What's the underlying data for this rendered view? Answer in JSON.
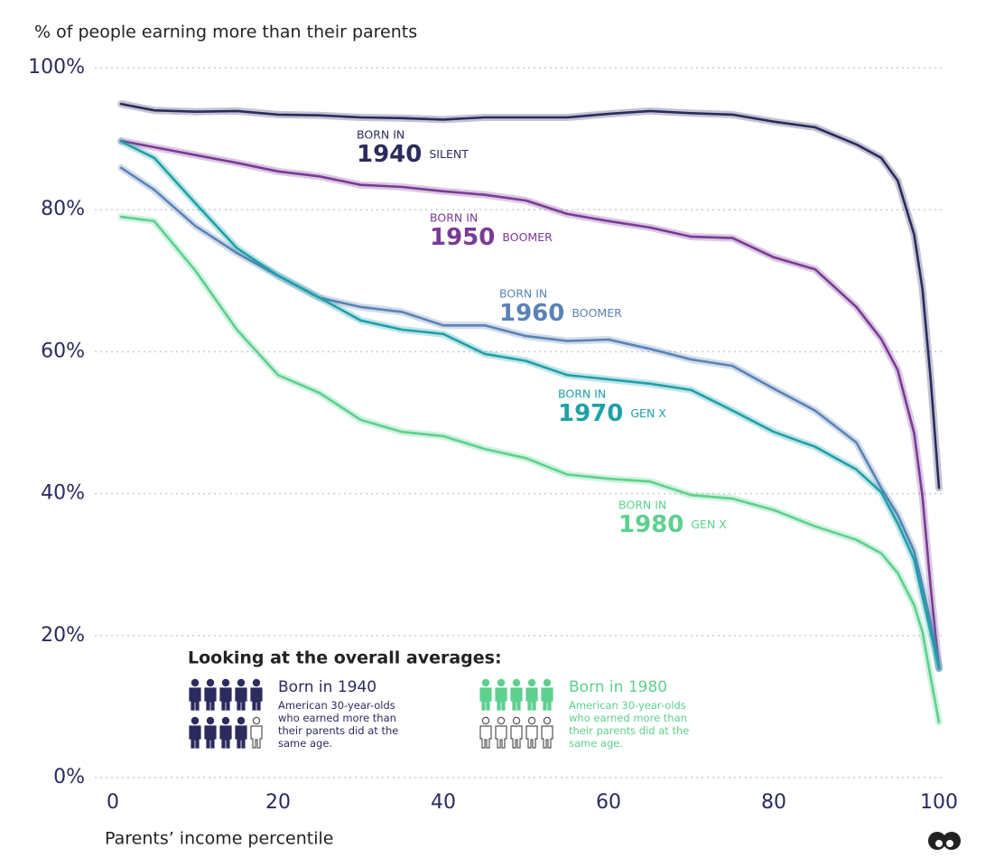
{
  "chart_data": {
    "type": "line",
    "y_axis_title": "% of people earning more than their parents",
    "x_axis_title": "Parents’ income percentile",
    "annotation_prefix": "BORN IN",
    "x": [
      1,
      5,
      10,
      15,
      20,
      25,
      30,
      35,
      40,
      45,
      50,
      55,
      60,
      65,
      70,
      75,
      80,
      85,
      90,
      93,
      95,
      97,
      98,
      99,
      100
    ],
    "xlim": [
      0,
      100
    ],
    "xticks": [
      0,
      20,
      40,
      60,
      80,
      100
    ],
    "ylim": [
      0,
      100
    ],
    "yticks": [
      {
        "value": 0,
        "label": "0%"
      },
      {
        "value": 20,
        "label": "20%"
      },
      {
        "value": 40,
        "label": "40%"
      },
      {
        "value": 60,
        "label": "60%"
      },
      {
        "value": 80,
        "label": "80%"
      },
      {
        "value": 100,
        "label": "100%"
      }
    ],
    "grid": true,
    "series": [
      {
        "name": "1940",
        "generation": "SILENT",
        "color": "#2b2b5e",
        "values": [
          94.9,
          94,
          93.8,
          93.9,
          93.4,
          93.3,
          93,
          92.9,
          92.7,
          93,
          93,
          93,
          93.5,
          93.9,
          93.6,
          93.4,
          92.4,
          91.6,
          89.2,
          87.3,
          84.1,
          76.5,
          68.8,
          56.1,
          40.8
        ]
      },
      {
        "name": "1950",
        "generation": "BOOMER",
        "color": "#7b3a96",
        "values": [
          89.7,
          88.8,
          87.7,
          86.6,
          85.4,
          84.7,
          83.5,
          83.2,
          82.6,
          82.1,
          81.3,
          79.4,
          78.4,
          77.5,
          76.2,
          76,
          73.3,
          71.6,
          66.3,
          61.8,
          57.4,
          48.5,
          39.6,
          26.8,
          15.4
        ]
      },
      {
        "name": "1960",
        "generation": "BOOMER",
        "color": "#5b82b5",
        "values": [
          85.9,
          82.8,
          77.7,
          73.9,
          70.7,
          67.6,
          66.3,
          65.6,
          63.7,
          63.7,
          62.2,
          61.5,
          61.7,
          60.4,
          58.9,
          58,
          54.8,
          51.7,
          47.2,
          40.8,
          37,
          31.9,
          27,
          21.8,
          15.4
        ]
      },
      {
        "name": "1970",
        "generation": "GEN X",
        "color": "#1fa0a8",
        "values": [
          89.6,
          87.3,
          80.9,
          74.6,
          70.7,
          67.6,
          64.4,
          63.1,
          62.5,
          59.7,
          58.7,
          56.7,
          56.1,
          55.5,
          54.6,
          51.7,
          48.7,
          46.6,
          43.4,
          40.2,
          35.8,
          30.7,
          25.5,
          20.5,
          15.4
        ]
      },
      {
        "name": "1980",
        "generation": "GEN X",
        "color": "#5dd08e",
        "values": [
          79,
          78.4,
          71.4,
          63.1,
          56.7,
          54.2,
          50.4,
          48.7,
          48.1,
          46.3,
          45,
          42.7,
          42.1,
          41.7,
          39.8,
          39.3,
          37.7,
          35.4,
          33.5,
          31.6,
          28.8,
          24.3,
          20.5,
          14.1,
          7.8
        ]
      }
    ]
  },
  "inset": {
    "title": "Looking at the overall averages:",
    "groups": [
      {
        "title": "Born in 1940",
        "text": "American 30-year-olds who earned more than their parents did at the same age.",
        "color": "#2b2b5e",
        "icons_filled": 9,
        "icons_total": 10
      },
      {
        "title": "Born in 1980",
        "text": "American 30-year-olds who earned more than their parents did at the same age.",
        "color": "#5dd08e",
        "icons_filled": 5,
        "icons_total": 10
      }
    ]
  }
}
